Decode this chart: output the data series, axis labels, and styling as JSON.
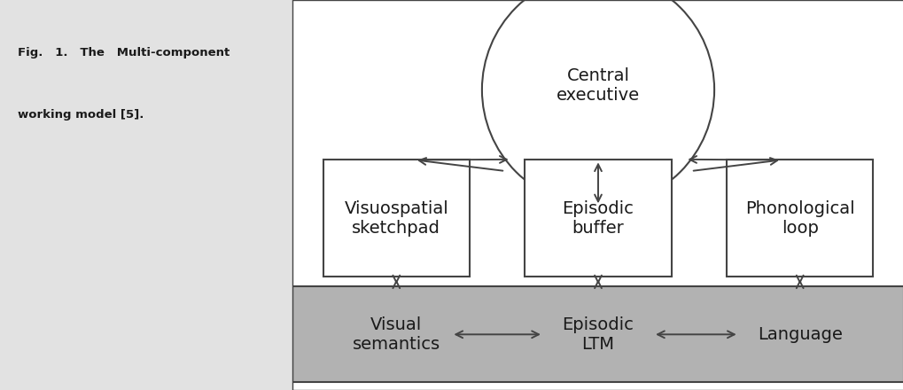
{
  "bg_color": "#ffffff",
  "label_bg_color": "#e2e2e2",
  "ltm_bg_color": "#b2b2b2",
  "border_color": "#444444",
  "text_color": "#1a1a1a",
  "central_executive": "Central\nexecutive",
  "visuospatial": "Visuospatial\nsketchpad",
  "episodic_buffer": "Episodic\nbuffer",
  "phonological": "Phonological\nloop",
  "visual_semantics": "Visual\nsemantics",
  "episodic_ltm": "Episodic\nLTM",
  "language": "Language",
  "font_size_main": 14,
  "font_size_label": 9.5,
  "fig_label_line1": "Fig.   1.   The   Multi-component",
  "fig_label_line2": "working model [5]."
}
